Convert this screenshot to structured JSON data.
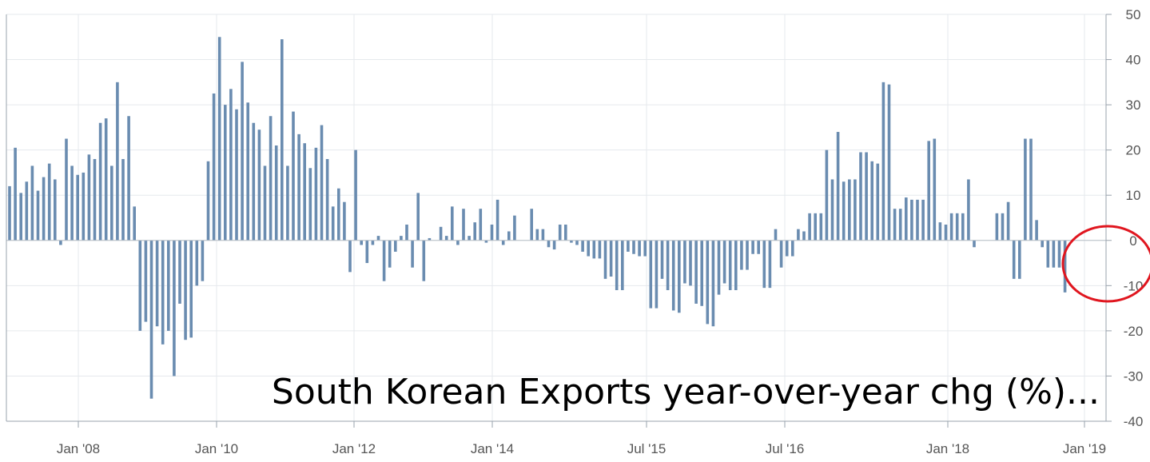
{
  "chart_data": {
    "type": "bar",
    "title": "",
    "xlabel": "",
    "ylabel": "",
    "annotation": "South Korean Exports year-over-year chg (%)...",
    "bar_color": "#6a8cb0",
    "highlight_color": "#e0161f",
    "ylim": [
      -40,
      50
    ],
    "y_ticks": [
      50,
      40,
      30,
      20,
      10,
      0,
      -10,
      -20,
      -30,
      -40
    ],
    "y_tick_labels": [
      "50",
      "40",
      "30",
      "20",
      "10",
      "0",
      "-10",
      "-20",
      "-30",
      "-40"
    ],
    "x_tick_labels": [
      "Jan '08",
      "Jan '10",
      "Jan '12",
      "Jan '14",
      "Jul '15",
      "Jul '16",
      "Jan '18",
      "Jan '19"
    ],
    "grid": "on",
    "values": [
      12,
      20.5,
      10.5,
      13,
      16.5,
      11,
      14,
      17,
      13.5,
      -1,
      22.5,
      16.5,
      14.5,
      15,
      19,
      18,
      26,
      27,
      16.5,
      35,
      18,
      27.5,
      7.5,
      -20,
      -18,
      -35,
      -19,
      -23,
      -20,
      -30,
      -14,
      -22,
      -21.5,
      -10,
      -9,
      17.5,
      32.5,
      45,
      30,
      33.5,
      29,
      39.5,
      30.5,
      26,
      24.5,
      16.5,
      27.5,
      21,
      44.5,
      16.5,
      28.5,
      23.5,
      21.5,
      16,
      20.5,
      25.5,
      18,
      7.5,
      11.5,
      8.5,
      -7,
      20,
      -1,
      -5,
      -1,
      1,
      -9,
      -6,
      -2.5,
      1,
      3.5,
      -6,
      10.5,
      -9,
      0.5,
      0,
      3,
      1,
      7.5,
      -1,
      7,
      1,
      4,
      7,
      -0.5,
      3.5,
      9,
      -1,
      2,
      5.5,
      0,
      0,
      7,
      2.5,
      2.5,
      -1.5,
      -2,
      3.5,
      3.5,
      -0.5,
      -1,
      -2.5,
      -3.5,
      -4,
      -4,
      -8.5,
      -8,
      -11,
      -11,
      -2.5,
      -3,
      -3.5,
      -3.5,
      -15,
      -15,
      -8.5,
      -11,
      -15.5,
      -16,
      -9.5,
      -10,
      -14,
      -14.5,
      -18.5,
      -19,
      -12,
      -9.5,
      -11,
      -11,
      -6.5,
      -6.5,
      -3,
      -3,
      -10.5,
      -10.5,
      2.5,
      -6,
      -3.5,
      -3.5,
      2.5,
      2,
      6,
      6,
      6,
      20,
      13.5,
      24,
      13,
      13.5,
      13.5,
      19.5,
      19.5,
      17.5,
      17,
      35,
      34.5,
      7,
      7,
      9.5,
      9,
      9,
      9,
      22,
      22.5,
      4,
      3.5,
      6,
      6,
      6,
      13.5,
      -1.5,
      0,
      0,
      0,
      6,
      6,
      8.5,
      -8.5,
      -8.5,
      22.5,
      22.5,
      4.5,
      -1.5,
      -6,
      -6,
      -6,
      -11.5
    ]
  }
}
